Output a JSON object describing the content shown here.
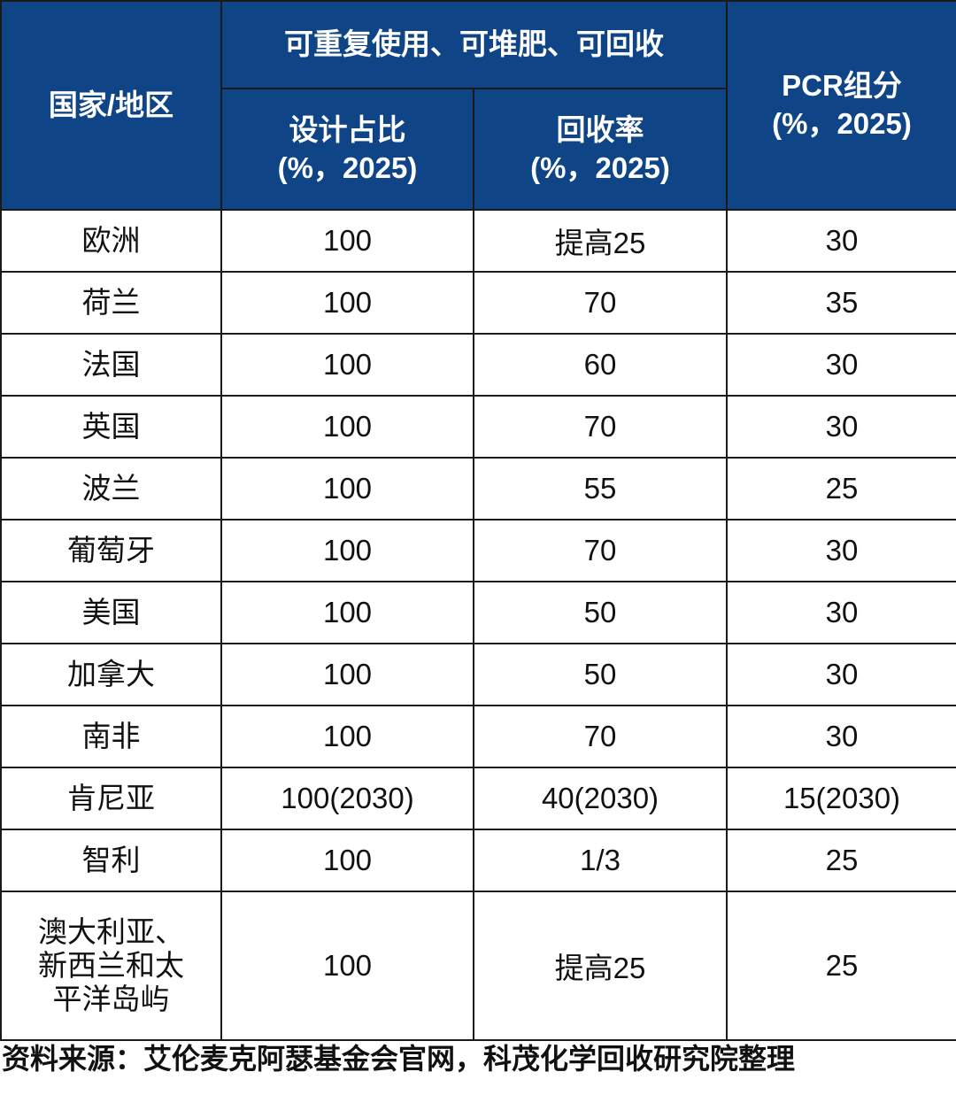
{
  "header": {
    "region": "国家/地区",
    "group": "可重复使用、可堆肥、可回收",
    "design_share": "设计占比\n(%，2025)",
    "recycling_rate": "回收率\n(%，2025)",
    "pcr": "PCR组分\n(%，2025)"
  },
  "table": {
    "rows": [
      [
        "欧洲",
        100,
        "提高25",
        30
      ],
      [
        "荷兰",
        100,
        70,
        35
      ],
      [
        "法国",
        100,
        60,
        30
      ],
      [
        "英国",
        100,
        70,
        30
      ],
      [
        "波兰",
        100,
        55,
        25
      ],
      [
        "葡萄牙",
        100,
        70,
        30
      ],
      [
        "美国",
        100,
        50,
        30
      ],
      [
        "加拿大",
        100,
        50,
        30
      ],
      [
        "南非",
        100,
        70,
        30
      ],
      [
        "肯尼亚",
        "100(2030)",
        "40(2030)",
        "15(2030)"
      ],
      [
        "智利",
        100,
        "1/3",
        25
      ],
      [
        "澳大利亚、新西兰和太平洋岛屿",
        100,
        "提高25",
        25
      ]
    ]
  },
  "source": "资料来源：艾伦麦克阿瑟基金会官网，科茂化学回收研究院整理"
}
